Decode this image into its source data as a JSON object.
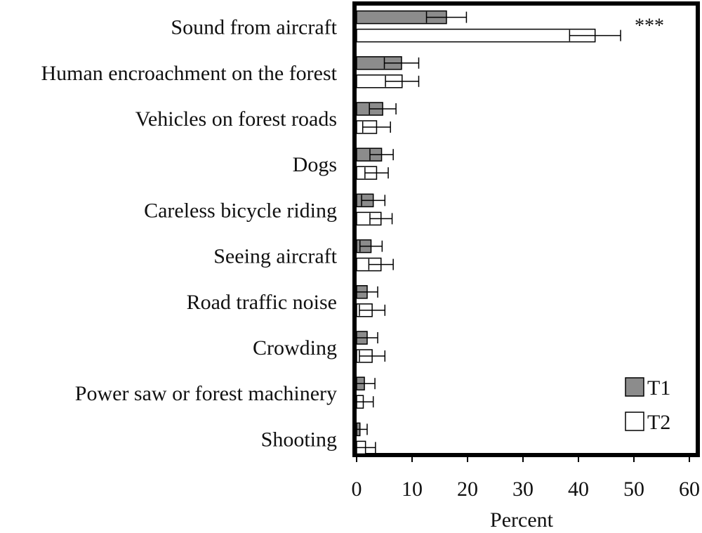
{
  "chart_data": {
    "type": "bar",
    "orientation": "horizontal",
    "categories": [
      "Sound from aircraft",
      "Human encroachment on the forest",
      "Vehicles on forest roads",
      "Dogs",
      "Careless bicycle riding",
      "Seeing aircraft",
      "Road traffic noise",
      "Crowding",
      "Power saw or forest machinery",
      "Shooting"
    ],
    "series": [
      {
        "name": "T1",
        "color": "#8c8c8c",
        "values": [
          16.2,
          8.1,
          4.7,
          4.5,
          3.0,
          2.6,
          1.9,
          1.9,
          1.4,
          0.6
        ],
        "errors": [
          3.6,
          3.1,
          2.4,
          2.1,
          2.1,
          2.0,
          1.9,
          1.9,
          1.9,
          1.3
        ]
      },
      {
        "name": "T2",
        "color": "#ffffff",
        "values": [
          43.0,
          8.2,
          3.6,
          3.6,
          4.4,
          4.4,
          2.8,
          2.8,
          1.2,
          1.6
        ],
        "errors": [
          4.6,
          3.0,
          2.5,
          2.1,
          2.0,
          2.2,
          2.3,
          2.3,
          1.8,
          1.8
        ]
      }
    ],
    "annotations": [
      {
        "category": "Sound from aircraft",
        "text": "***"
      }
    ],
    "title": "",
    "xlabel": "Percent",
    "ylabel": "",
    "xlim": [
      0,
      60
    ],
    "xticks": [
      0,
      10,
      20,
      30,
      40,
      50,
      60
    ],
    "grid": false,
    "legend_position": "bottom-right"
  }
}
